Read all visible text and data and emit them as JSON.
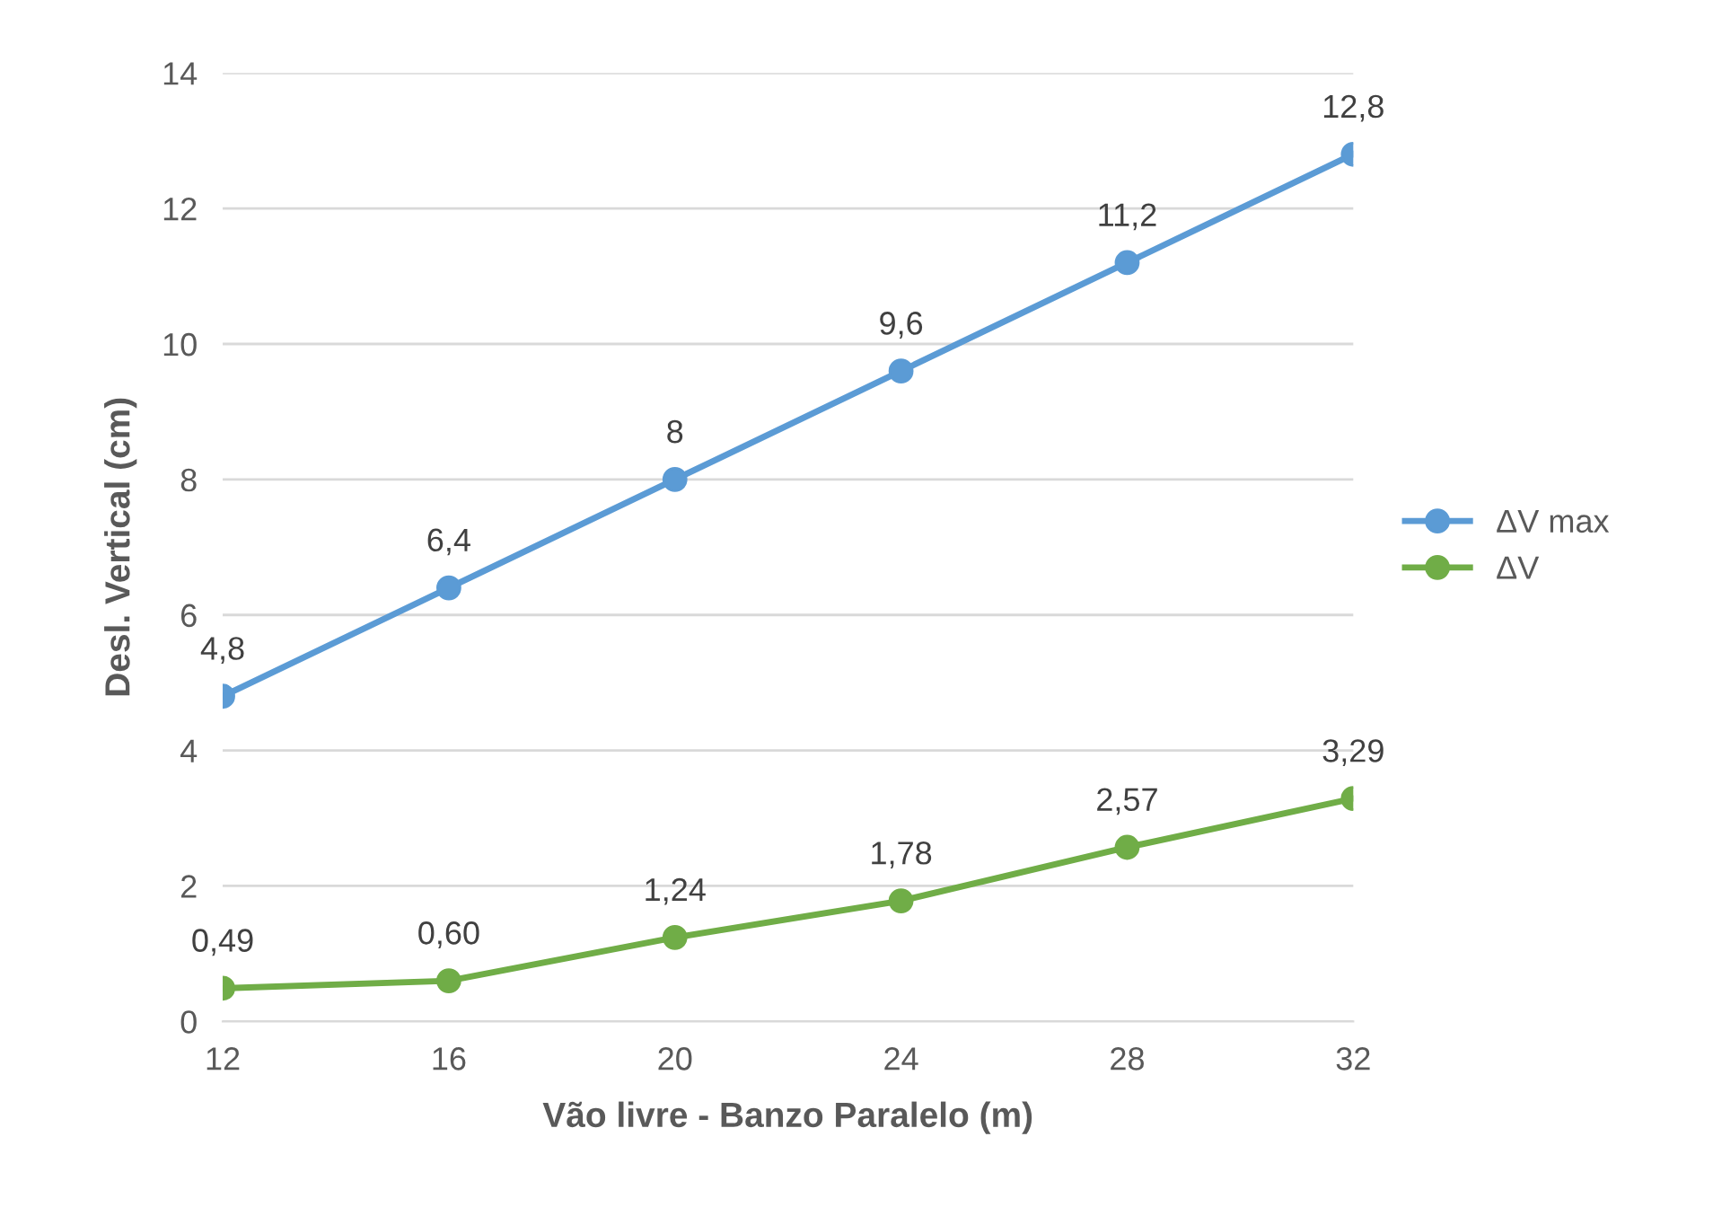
{
  "chart_data": {
    "type": "line",
    "xlabel": "Vão livre - Banzo Paralelo (m)",
    "ylabel": "Desl. Vertical (cm)",
    "x": [
      12,
      16,
      20,
      24,
      28,
      32
    ],
    "series": [
      {
        "name": "ΔV max",
        "color": "#5b9bd5",
        "values": [
          4.8,
          6.4,
          8,
          9.6,
          11.2,
          12.8
        ],
        "value_labels": [
          "4,8",
          "6,4",
          "8",
          "9,6",
          "11,2",
          "12,8"
        ]
      },
      {
        "name": "ΔV",
        "color": "#70ad47",
        "values": [
          0.49,
          0.6,
          1.24,
          1.78,
          2.57,
          3.29
        ],
        "value_labels": [
          "0,49",
          "0,60",
          "1,24",
          "1,78",
          "2,57",
          "3,29"
        ]
      }
    ],
    "xlim": [
      12,
      32
    ],
    "xticks": [
      12,
      16,
      20,
      24,
      28,
      32
    ],
    "ylim": [
      0,
      14
    ],
    "yticks": [
      0,
      2,
      4,
      6,
      8,
      10,
      12,
      14
    ],
    "grid": "y",
    "legend": "right",
    "marker": "circle",
    "line_style": "solid"
  }
}
